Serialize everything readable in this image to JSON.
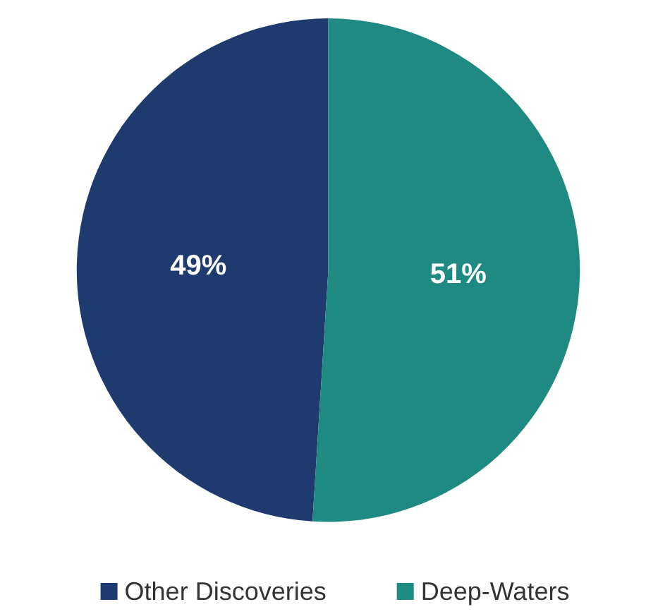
{
  "chart_data": {
    "type": "pie",
    "categories": [
      "Other Discoveries",
      "Deep-Waters"
    ],
    "values": [
      49,
      51
    ],
    "colors": [
      "#1f3a6e",
      "#1f8a82"
    ],
    "value_labels": [
      "49%",
      "51%"
    ],
    "legend": "bottom"
  }
}
